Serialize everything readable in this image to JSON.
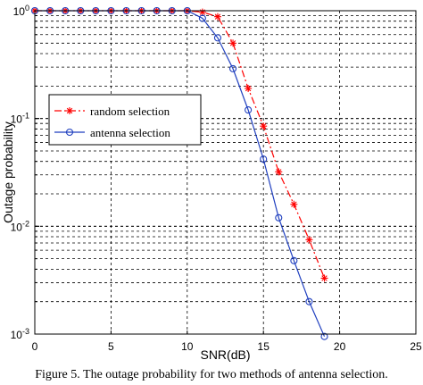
{
  "chart_data": {
    "type": "line",
    "xlabel": "SNR(dB)",
    "ylabel": "Outage probability",
    "xlim": [
      0,
      25
    ],
    "ylim": [
      0.001,
      1
    ],
    "yscale": "log",
    "x_ticks": [
      "0",
      "5",
      "10",
      "15",
      "20",
      "25"
    ],
    "y_ticks": [
      {
        "base": "10",
        "exp": "0",
        "value": 1
      },
      {
        "base": "10",
        "exp": "-1",
        "value": 0.1
      },
      {
        "base": "10",
        "exp": "-2",
        "value": 0.01
      },
      {
        "base": "10",
        "exp": "-3",
        "value": 0.001
      }
    ],
    "grid": true,
    "legend_position": "center-left",
    "series": [
      {
        "name": "random selection",
        "color": "#ff0000",
        "line_style": "dash-dot",
        "marker": "star",
        "x": [
          0,
          1,
          2,
          3,
          4,
          5,
          6,
          7,
          8,
          9,
          10,
          11,
          12,
          13,
          14,
          15,
          16,
          17,
          18,
          19
        ],
        "y": [
          1,
          1,
          1,
          1,
          1,
          1,
          1,
          1,
          1,
          1,
          1,
          0.97,
          0.88,
          0.5,
          0.19,
          0.085,
          0.032,
          0.016,
          0.0075,
          0.0033
        ]
      },
      {
        "name": "antenna selection",
        "color": "#1f3fbf",
        "line_style": "solid",
        "marker": "circle",
        "x": [
          0,
          1,
          2,
          3,
          4,
          5,
          6,
          7,
          8,
          9,
          10,
          11,
          12,
          13,
          14,
          15,
          16,
          17,
          18,
          19
        ],
        "y": [
          1,
          1,
          1,
          1,
          1,
          1,
          1,
          1,
          1,
          1,
          1,
          0.85,
          0.56,
          0.29,
          0.12,
          0.042,
          0.012,
          0.0048,
          0.002,
          0.00095
        ]
      }
    ]
  },
  "caption": "Figure 5. The outage probability for two methods of antenna selection."
}
